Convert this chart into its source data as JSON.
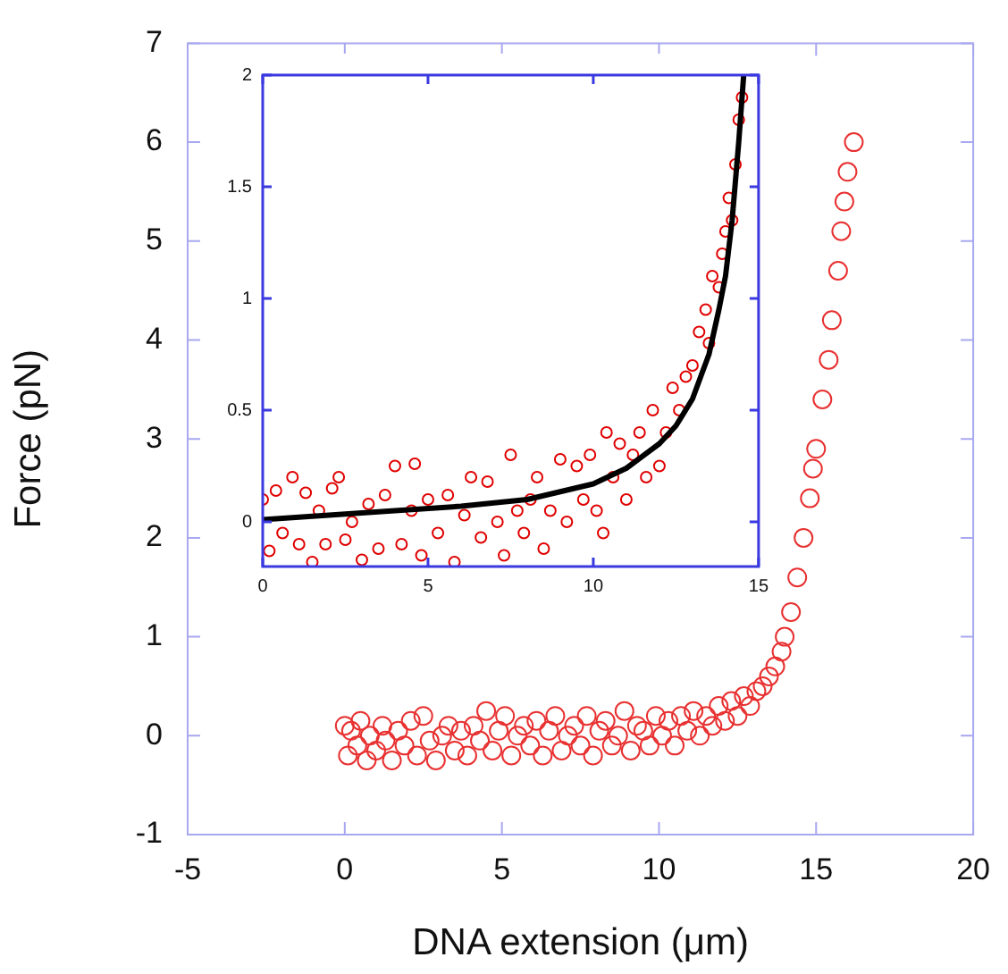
{
  "chart_data": [
    {
      "type": "scatter",
      "xlabel": "DNA extension (μm)",
      "ylabel": "Force (pN)",
      "xlim": [
        -5,
        20
      ],
      "ylim": [
        -1,
        7
      ],
      "xticks": [
        -5,
        0,
        5,
        10,
        15,
        20
      ],
      "yticks": [
        -1,
        0,
        1,
        2,
        3,
        4,
        5,
        6,
        7
      ],
      "marker": "circle",
      "series": [
        {
          "color": "#e83030",
          "x": [
            0,
            0.1,
            0.2,
            0.4,
            0.5,
            0.7,
            0.8,
            1.0,
            1.2,
            1.3,
            1.5,
            1.7,
            1.9,
            2.1,
            2.3,
            2.5,
            2.7,
            2.9,
            3.1,
            3.3,
            3.5,
            3.7,
            3.9,
            4.1,
            4.3,
            4.5,
            4.7,
            4.9,
            5.1,
            5.3,
            5.5,
            5.7,
            5.9,
            6.1,
            6.3,
            6.5,
            6.7,
            6.9,
            7.1,
            7.3,
            7.5,
            7.7,
            7.9,
            8.1,
            8.3,
            8.5,
            8.7,
            8.9,
            9.1,
            9.3,
            9.5,
            9.7,
            9.9,
            10.1,
            10.3,
            10.5,
            10.7,
            10.9,
            11.1,
            11.3,
            11.5,
            11.7,
            11.9,
            12.1,
            12.3,
            12.5,
            12.7,
            12.9,
            13.1,
            13.3,
            13.5,
            13.7,
            13.9,
            14.0,
            14.2,
            14.4,
            14.6,
            14.8,
            14.9,
            15.0,
            15.2,
            15.4,
            15.5,
            15.7,
            15.8,
            15.9,
            16.0,
            16.2
          ],
          "values": [
            0.1,
            -0.2,
            0.05,
            -0.1,
            0.15,
            -0.25,
            0,
            -0.15,
            0.1,
            -0.05,
            -0.25,
            0.05,
            -0.1,
            0.15,
            -0.2,
            0.2,
            -0.05,
            -0.25,
            0,
            0.1,
            -0.15,
            0.05,
            -0.2,
            0.1,
            -0.05,
            0.25,
            -0.15,
            0.05,
            0.2,
            -0.2,
            0,
            0.1,
            -0.1,
            0.15,
            -0.2,
            0.05,
            0.2,
            -0.15,
            0,
            0.1,
            -0.1,
            0.2,
            -0.2,
            0.05,
            0.15,
            -0.1,
            0,
            0.25,
            -0.15,
            0.1,
            0.05,
            -0.1,
            0.2,
            0,
            0.15,
            -0.1,
            0.2,
            0.05,
            0.25,
            0,
            0.2,
            0.1,
            0.3,
            0.15,
            0.35,
            0.2,
            0.4,
            0.3,
            0.45,
            0.5,
            0.6,
            0.7,
            0.85,
            1.0,
            1.25,
            1.6,
            2.0,
            2.4,
            2.7,
            2.9,
            3.4,
            3.8,
            4.2,
            4.7,
            5.1,
            5.4,
            5.7,
            6.0
          ]
        }
      ]
    },
    {
      "type": "scatter",
      "xlim": [
        0,
        15
      ],
      "ylim": [
        -0.2,
        2
      ],
      "xticks": [
        0,
        5,
        10,
        15
      ],
      "yticks": [
        0,
        0.5,
        1,
        1.5,
        2
      ],
      "marker": "circle",
      "series": [
        {
          "color": "#e00000",
          "x": [
            0,
            0.2,
            0.4,
            0.6,
            0.9,
            1.1,
            1.3,
            1.5,
            1.7,
            1.9,
            2.1,
            2.3,
            2.5,
            2.7,
            3.0,
            3.2,
            3.5,
            3.7,
            4.0,
            4.2,
            4.5,
            4.6,
            4.8,
            5.0,
            5.3,
            5.6,
            5.8,
            6.1,
            6.3,
            6.6,
            6.8,
            7.1,
            7.3,
            7.5,
            7.7,
            7.9,
            8.1,
            8.3,
            8.5,
            8.7,
            9.0,
            9.2,
            9.5,
            9.7,
            9.9,
            10.1,
            10.3,
            10.4,
            10.6,
            10.8,
            11.0,
            11.2,
            11.4,
            11.6,
            11.8,
            12.0,
            12.2,
            12.4,
            12.6,
            12.8,
            13.0,
            13.2,
            13.4,
            13.5,
            13.6,
            13.8,
            13.9,
            14.0,
            14.1,
            14.2,
            14.3,
            14.4,
            14.5
          ],
          "values": [
            0.1,
            -0.13,
            0.14,
            -0.05,
            0.2,
            -0.1,
            0.13,
            -0.18,
            0.05,
            -0.1,
            0.15,
            0.2,
            -0.08,
            0,
            -0.17,
            0.08,
            -0.12,
            0.12,
            0.25,
            -0.1,
            0.05,
            0.26,
            -0.15,
            0.1,
            -0.05,
            0.12,
            -0.18,
            0.03,
            0.2,
            -0.07,
            0.18,
            0,
            -0.15,
            0.3,
            0.05,
            -0.05,
            0.1,
            0.2,
            -0.12,
            0.05,
            0.28,
            0,
            0.25,
            0.1,
            0.3,
            0.05,
            -0.05,
            0.4,
            0.2,
            0.35,
            0.1,
            0.3,
            0.4,
            0.2,
            0.5,
            0.25,
            0.4,
            0.6,
            0.5,
            0.65,
            0.7,
            0.85,
            0.95,
            0.8,
            1.1,
            1.05,
            1.2,
            1.3,
            1.45,
            1.35,
            1.6,
            1.8,
            1.9
          ]
        },
        {
          "type": "line",
          "marker": "none",
          "color": "#000000",
          "x": [
            0,
            2,
            4,
            6,
            8,
            10,
            11,
            12,
            12.5,
            13,
            13.5,
            13.8,
            14,
            14.2,
            14.4,
            14.55
          ],
          "values": [
            0.01,
            0.03,
            0.05,
            0.07,
            0.1,
            0.17,
            0.24,
            0.35,
            0.43,
            0.55,
            0.75,
            0.95,
            1.1,
            1.35,
            1.7,
            2.0
          ]
        }
      ]
    }
  ]
}
